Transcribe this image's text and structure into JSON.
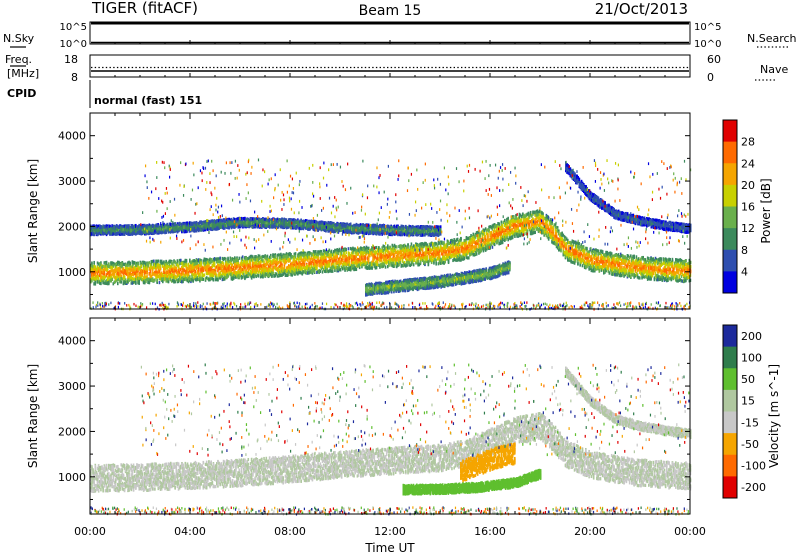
{
  "header": {
    "title": "TIGER (fitACF)",
    "beam": "Beam 15",
    "date": "21/Oct/2013"
  },
  "strip_panels": {
    "nsky": {
      "label": "N.Sky",
      "ticks_left": [
        "10^5",
        "10^0"
      ],
      "ticks_right": [
        "10^5",
        "10^0"
      ],
      "right_label": "N.Search"
    },
    "freq": {
      "label_line1": "Freq.",
      "label_line2": "[MHz]",
      "ticks_left": [
        "18",
        "8"
      ],
      "ticks_right": [
        "60",
        "0"
      ],
      "right_label": "Nave"
    },
    "cpid": {
      "label": "CPID",
      "text": "normal (fast) 151"
    }
  },
  "chart_data": [
    {
      "type": "heatmap",
      "title": "",
      "ylabel": "Slant Range [km]",
      "xlabel": "",
      "ylim": [
        180,
        4500
      ],
      "yticks": [
        "1000",
        "2000",
        "3000",
        "4000"
      ],
      "colorbar": {
        "label": "Power [dB]",
        "ticks": [
          "28",
          "24",
          "20",
          "16",
          "12",
          "8",
          "4"
        ],
        "colors": [
          "#e00000",
          "#ff6a00",
          "#f5a500",
          "#c8d000",
          "#6ab04c",
          "#3c8a5c",
          "#2f4fb0",
          "#0000e0"
        ]
      },
      "bands": [
        {
          "name": "main",
          "x": [
            0,
            2,
            4,
            6,
            8,
            10,
            12,
            14,
            15,
            16,
            17,
            18,
            18.5,
            19,
            20,
            21,
            22,
            23,
            24
          ],
          "y": [
            1000,
            1020,
            1060,
            1120,
            1200,
            1300,
            1380,
            1450,
            1550,
            1800,
            2050,
            2150,
            1900,
            1550,
            1300,
            1200,
            1120,
            1080,
            1050
          ],
          "width": 300,
          "peak_db": 26
        },
        {
          "name": "upper",
          "x": [
            0,
            2,
            4,
            6,
            8,
            10,
            12,
            14
          ],
          "y": [
            1950,
            1960,
            2020,
            2120,
            2100,
            2000,
            1950,
            1930
          ],
          "width": 120,
          "peak_db": 12
        },
        {
          "name": "lower",
          "x": [
            11,
            12,
            13,
            14,
            15,
            16,
            16.8
          ],
          "y": [
            640,
            700,
            760,
            820,
            900,
            1000,
            1150
          ],
          "width": 150,
          "peak_db": 16
        },
        {
          "name": "arc",
          "x": [
            19,
            20,
            21,
            22,
            23,
            24
          ],
          "y": [
            3350,
            2700,
            2300,
            2150,
            2050,
            1980
          ],
          "width": 110,
          "peak_db": 8
        }
      ]
    },
    {
      "type": "heatmap",
      "title": "",
      "ylabel": "Slant Range [km]",
      "xlabel": "Time UT",
      "ylim": [
        180,
        4500
      ],
      "yticks": [
        "1000",
        "2000",
        "3000",
        "4000"
      ],
      "xticks": [
        "00:00",
        "04:00",
        "08:00",
        "12:00",
        "16:00",
        "20:00",
        "00:00"
      ],
      "colorbar": {
        "label": "Velocity [m s^-1]",
        "ticks": [
          "200",
          "100",
          "50",
          "15",
          "-15",
          "-50",
          "-100",
          "-200"
        ],
        "colors": [
          "#1c2a9c",
          "#2f7d4c",
          "#5fbf2f",
          "#b0c8a0",
          "#c8c8c8",
          "#f5a500",
          "#ff6a00",
          "#e00000"
        ]
      },
      "bands": [
        {
          "name": "ground-scatter",
          "x": [
            0,
            2,
            4,
            6,
            8,
            10,
            12,
            14,
            15,
            16,
            17,
            18,
            18.5,
            19,
            20,
            21,
            22,
            23,
            24
          ],
          "y": [
            1000,
            1020,
            1060,
            1120,
            1200,
            1300,
            1380,
            1450,
            1550,
            1800,
            2050,
            2150,
            1900,
            1550,
            1300,
            1200,
            1120,
            1080,
            1050
          ],
          "width": 360,
          "velocity": 0
        },
        {
          "name": "negative-patch",
          "x": [
            14.8,
            15.5,
            16.2,
            17
          ],
          "y": [
            1150,
            1300,
            1450,
            1550
          ],
          "width": 280,
          "velocity": -40
        },
        {
          "name": "positive-patch",
          "x": [
            12.5,
            14,
            15.5,
            17,
            18
          ],
          "y": [
            750,
            760,
            800,
            900,
            1100
          ],
          "width": 120,
          "velocity": 40
        },
        {
          "name": "arc",
          "x": [
            19,
            20,
            21,
            22,
            23,
            24
          ],
          "y": [
            3350,
            2700,
            2300,
            2150,
            2050,
            1980
          ],
          "width": 110,
          "velocity": 0
        }
      ]
    }
  ]
}
